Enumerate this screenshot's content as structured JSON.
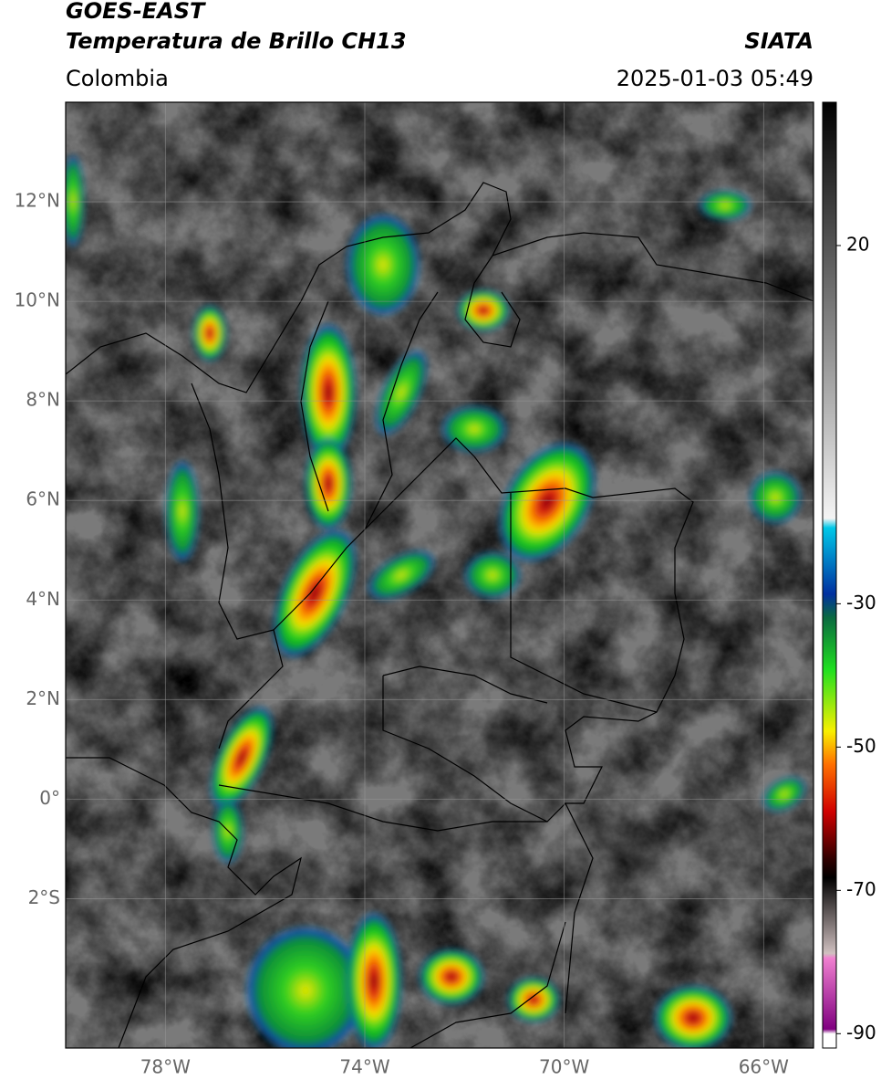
{
  "header": {
    "title": "GOES-EAST",
    "subtitle": "Temperatura de Brillo CH13",
    "source": "SIATA",
    "region": "Colombia",
    "datetime": "2025-01-03 05:49"
  },
  "map": {
    "xlim": [
      -80,
      -65
    ],
    "ylim": [
      -5,
      14
    ],
    "lat_ticks": [
      {
        "value": 12,
        "label": "12°N"
      },
      {
        "value": 10,
        "label": "10°N"
      },
      {
        "value": 8,
        "label": "8°N"
      },
      {
        "value": 6,
        "label": "6°N"
      },
      {
        "value": 4,
        "label": "4°N"
      },
      {
        "value": 2,
        "label": "2°N"
      },
      {
        "value": 0,
        "label": "0°"
      },
      {
        "value": -2,
        "label": "2°S"
      }
    ],
    "lon_ticks": [
      {
        "value": -78,
        "label": "78°W"
      },
      {
        "value": -74,
        "label": "74°W"
      },
      {
        "value": -70,
        "label": "70°W"
      },
      {
        "value": -66,
        "label": "66°W"
      }
    ]
  },
  "colorbar": {
    "lim": [
      -92,
      40
    ],
    "ticks": [
      20,
      -30,
      -50,
      -70,
      -90
    ]
  }
}
